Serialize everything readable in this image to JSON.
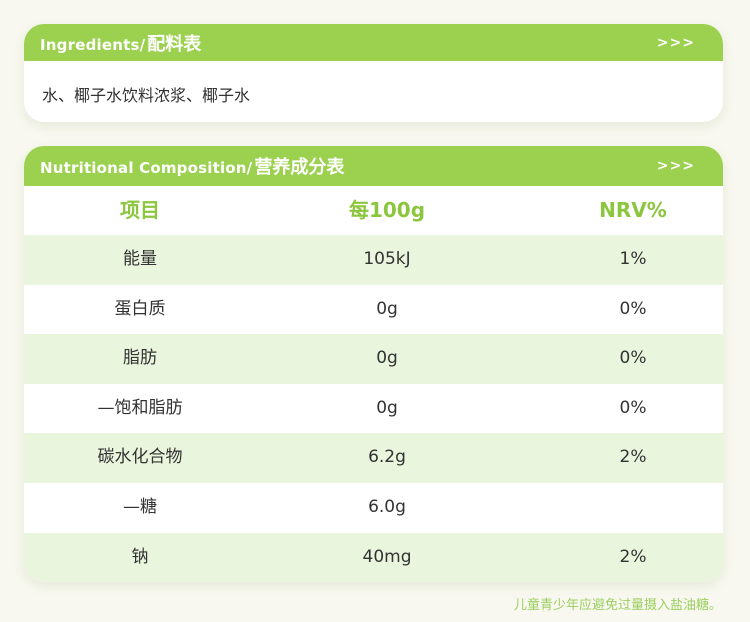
{
  "ingredients": {
    "title_en": "Ingredients/",
    "title_cn": "配料表",
    "arrows": ">>>",
    "text": "水、椰子水饮料浓浆、椰子水"
  },
  "nutrition": {
    "title_en": "Nutritional Composition/",
    "title_cn": "营养成分表",
    "arrows": ">>>",
    "headers": [
      "项目",
      "每100g",
      "NRV%"
    ],
    "rows": [
      {
        "item": "能量",
        "per100g": "105kJ",
        "nrv": "1%"
      },
      {
        "item": "蛋白质",
        "per100g": "0g",
        "nrv": "0%"
      },
      {
        "item": "脂肪",
        "per100g": "0g",
        "nrv": "0%"
      },
      {
        "item": "—饱和脂肪",
        "per100g": "0g",
        "nrv": "0%"
      },
      {
        "item": "碳水化合物",
        "per100g": "6.2g",
        "nrv": "2%"
      },
      {
        "item": "—糖",
        "per100g": "6.0g",
        "nrv": ""
      },
      {
        "item": "钠",
        "per100g": "40mg",
        "nrv": "2%"
      }
    ]
  },
  "footnote": "儿童青少年应避免过量摄入盐油糖。",
  "colors": {
    "accent": "#9bd14f",
    "header_text": "#8cc63f",
    "row_stripe": "#eaf5dd",
    "background": "#f8f8f0"
  }
}
